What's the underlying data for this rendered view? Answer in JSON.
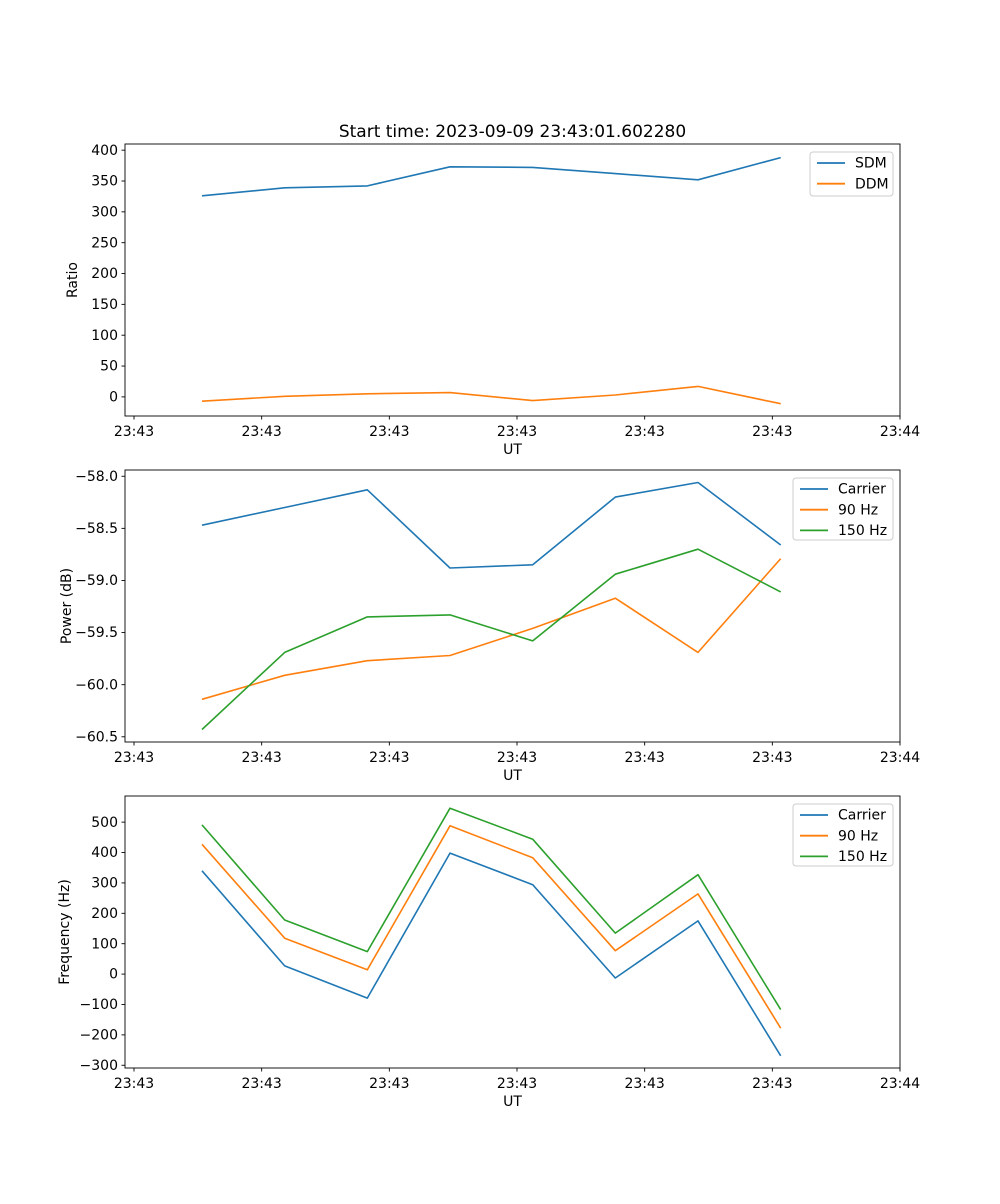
{
  "title": "Start time: 2023-09-09 23:43:01.602280",
  "colors": {
    "series_blue": "#1f77b4",
    "series_orange": "#ff7f0e",
    "series_green": "#2ca02c",
    "axis": "#000000",
    "legend_border": "#cccccc",
    "background": "#ffffff"
  },
  "chart_data": [
    {
      "type": "line",
      "title": "",
      "xlabel": "UT",
      "ylabel": "Ratio",
      "x_tick_labels": [
        "23:43",
        "23:43",
        "23:43",
        "23:43",
        "23:43",
        "23:43",
        "23:44"
      ],
      "y_ticks": [
        400,
        350,
        300,
        250,
        200,
        150,
        100,
        50,
        0
      ],
      "y_tick_labels": [
        "400",
        "350",
        "300",
        "250",
        "200",
        "150",
        "100",
        "50",
        "0"
      ],
      "ylim": [
        -31,
        410
      ],
      "grid": false,
      "legend_position": "upper right",
      "legend": [
        "SDM",
        "DDM"
      ],
      "series": [
        {
          "name": "SDM",
          "color": "#1f77b4",
          "values": [
            326,
            339,
            342,
            373,
            372,
            362,
            352,
            388
          ]
        },
        {
          "name": "DDM",
          "color": "#ff7f0e",
          "values": [
            -7,
            1,
            5,
            7,
            -6,
            3,
            17,
            -11
          ]
        }
      ]
    },
    {
      "type": "line",
      "title": "",
      "xlabel": "UT",
      "ylabel": "Power (dB)",
      "x_tick_labels": [
        "23:43",
        "23:43",
        "23:43",
        "23:43",
        "23:43",
        "23:43",
        "23:44"
      ],
      "y_ticks": [
        -58.0,
        -58.5,
        -59.0,
        -59.5,
        -60.0,
        -60.5
      ],
      "y_tick_labels": [
        "−58.0",
        "−58.5",
        "−59.0",
        "−59.5",
        "−60.0",
        "−60.5"
      ],
      "ylim": [
        -60.55,
        -57.94
      ],
      "grid": false,
      "legend_position": "upper right",
      "legend": [
        "Carrier",
        "90 Hz",
        "150 Hz"
      ],
      "series": [
        {
          "name": "Carrier",
          "color": "#1f77b4",
          "values": [
            -58.47,
            -58.3,
            -58.13,
            -58.88,
            -58.85,
            -58.2,
            -58.06,
            -58.66
          ]
        },
        {
          "name": "90 Hz",
          "color": "#ff7f0e",
          "values": [
            -60.14,
            -59.91,
            -59.77,
            -59.72,
            -59.46,
            -59.17,
            -59.69,
            -58.79
          ]
        },
        {
          "name": "150 Hz",
          "color": "#2ca02c",
          "values": [
            -60.43,
            -59.69,
            -59.35,
            -59.33,
            -59.58,
            -58.94,
            -58.7,
            -59.11
          ]
        }
      ]
    },
    {
      "type": "line",
      "title": "",
      "xlabel": "UT",
      "ylabel": "Frequency (Hz)",
      "x_tick_labels": [
        "23:43",
        "23:43",
        "23:43",
        "23:43",
        "23:43",
        "23:43",
        "23:44"
      ],
      "y_ticks": [
        500,
        400,
        300,
        200,
        100,
        0,
        -100,
        -200,
        -300
      ],
      "y_tick_labels": [
        "500",
        "400",
        "300",
        "200",
        "100",
        "0",
        "−100",
        "−200",
        "−300"
      ],
      "ylim": [
        -309,
        586
      ],
      "grid": false,
      "legend_position": "upper right",
      "legend": [
        "Carrier",
        "90 Hz",
        "150 Hz"
      ],
      "series": [
        {
          "name": "Carrier",
          "color": "#1f77b4",
          "values": [
            340,
            27,
            -79,
            398,
            294,
            -13,
            175,
            -269
          ]
        },
        {
          "name": "90 Hz",
          "color": "#ff7f0e",
          "values": [
            427,
            118,
            14,
            488,
            383,
            77,
            264,
            -178
          ]
        },
        {
          "name": "150 Hz",
          "color": "#2ca02c",
          "values": [
            491,
            178,
            74,
            546,
            444,
            135,
            327,
            -117
          ]
        }
      ]
    }
  ]
}
